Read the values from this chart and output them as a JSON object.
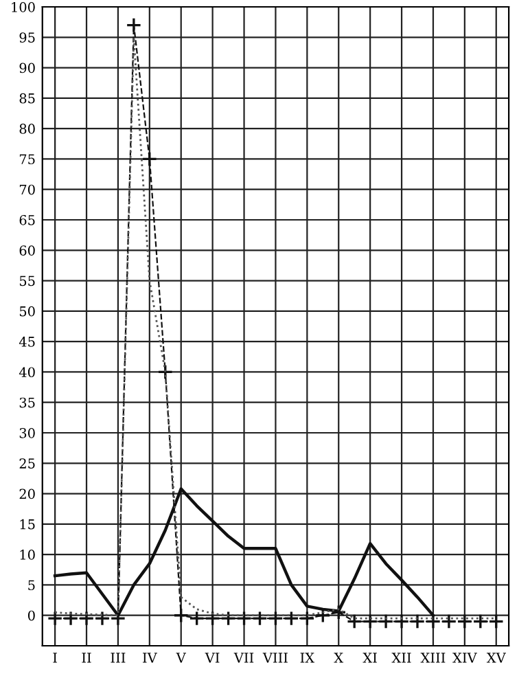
{
  "chart_data": {
    "type": "line",
    "categories": [
      "I",
      null,
      "II",
      null,
      "III",
      null,
      "IV",
      null,
      "V",
      null,
      "VI",
      null,
      "VII",
      null,
      "VIII",
      null,
      "IX",
      null,
      "X",
      null,
      "XI",
      null,
      "XII",
      null,
      "XIII",
      null,
      "XIV",
      null,
      "XV"
    ],
    "ylim": [
      -5,
      100
    ],
    "yticks": [
      0,
      5,
      10,
      15,
      20,
      25,
      30,
      35,
      40,
      45,
      50,
      55,
      60,
      65,
      70,
      75,
      80,
      85,
      90,
      95,
      100
    ],
    "grid": true,
    "series": [
      {
        "color": "#111111",
        "line_style": "solid",
        "marker": "none",
        "values": [
          6.5,
          6.8,
          7,
          3.5,
          0,
          5,
          8.5,
          14,
          20.8,
          18,
          15.5,
          13,
          11,
          11,
          11,
          5,
          1.5,
          1,
          0.7,
          6,
          11.8,
          8.5,
          5.8,
          3,
          0,
          null,
          null,
          null,
          null
        ]
      },
      {
        "color": "#111111",
        "line_style": "dashed",
        "marker": "cross",
        "values": [
          -0.5,
          -0.5,
          -0.5,
          -0.5,
          -0.5,
          97,
          75,
          40,
          0,
          -0.5,
          -0.5,
          -0.5,
          -0.5,
          -0.5,
          -0.5,
          -0.5,
          -0.5,
          0,
          0.5,
          -1,
          -1,
          -1,
          -1,
          -1,
          -1,
          -1,
          -1,
          -1,
          -1
        ]
      },
      {
        "color": "#555555",
        "line_style": "dotted",
        "marker": "none",
        "values": [
          0.5,
          0.3,
          0.2,
          0.1,
          0,
          95,
          55,
          40,
          3,
          1,
          0.3,
          0,
          0,
          0,
          0,
          0,
          0,
          0.5,
          1,
          -0.5,
          -0.5,
          -0.5,
          -0.5,
          -0.5,
          -0.5,
          -0.5,
          -0.5,
          -0.5,
          -0.5
        ]
      }
    ]
  }
}
